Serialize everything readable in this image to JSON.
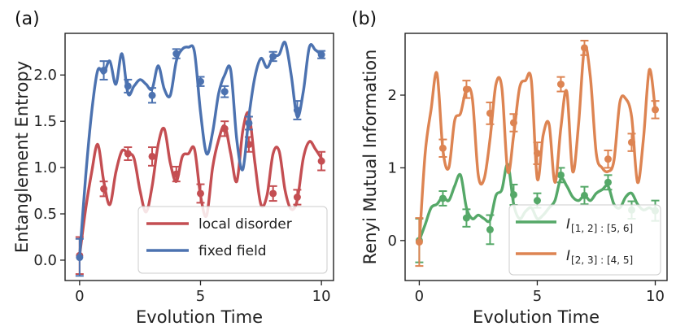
{
  "chart_data": [
    {
      "panel_label": "(a)",
      "type": "line",
      "xlabel": "Evolution Time",
      "ylabel": "Entanglement Entropy",
      "xlim": [
        -0.6,
        10.5
      ],
      "ylim": [
        -0.22,
        2.45
      ],
      "xticks": [
        0,
        5,
        10
      ],
      "xtick_labels": [
        "0",
        "5",
        "10"
      ],
      "yticks": [
        0.0,
        0.5,
        1.0,
        1.5,
        2.0
      ],
      "ytick_labels": [
        "0.0",
        "0.5",
        "1.0",
        "1.5",
        "2.0"
      ],
      "legend_position": "lower-right",
      "series": [
        {
          "name": "local disorder",
          "color": "#c44e52",
          "curve_x": [
            0,
            0.25,
            0.5,
            0.75,
            1,
            1.25,
            1.5,
            1.75,
            2,
            2.25,
            2.5,
            2.75,
            3,
            3.25,
            3.5,
            3.75,
            4,
            4.25,
            4.5,
            4.75,
            5,
            5.25,
            5.5,
            5.75,
            6,
            6.25,
            6.5,
            6.75,
            7,
            7.25,
            7.5,
            7.75,
            8,
            8.25,
            8.5,
            8.75,
            9,
            9.25,
            9.5,
            9.75,
            10
          ],
          "curve_y": [
            0.05,
            0.55,
            0.95,
            1.25,
            0.85,
            0.6,
            0.95,
            1.18,
            1.15,
            1.1,
            0.75,
            0.52,
            0.8,
            1.25,
            1.42,
            1.05,
            0.85,
            1.12,
            1.15,
            1.2,
            0.7,
            0.48,
            1.0,
            1.3,
            1.45,
            1.15,
            0.85,
            1.4,
            1.58,
            1.05,
            0.6,
            0.7,
            1.15,
            1.18,
            0.75,
            0.55,
            0.65,
            1.1,
            1.28,
            1.2,
            1.1
          ],
          "points": [
            {
              "x": 0,
              "y": 0.05,
              "err": 0.2
            },
            {
              "x": 1,
              "y": 0.77,
              "err": 0.08
            },
            {
              "x": 2,
              "y": 1.15,
              "err": 0.07
            },
            {
              "x": 3,
              "y": 1.12,
              "err": 0.1
            },
            {
              "x": 4,
              "y": 0.93,
              "err": 0.08
            },
            {
              "x": 5,
              "y": 0.72,
              "err": 0.1
            },
            {
              "x": 6,
              "y": 1.42,
              "err": 0.08
            },
            {
              "x": 7,
              "y": 1.25,
              "err": 0.08
            },
            {
              "x": 8,
              "y": 0.72,
              "err": 0.08
            },
            {
              "x": 9,
              "y": 0.68,
              "err": 0.08
            },
            {
              "x": 10,
              "y": 1.07,
              "err": 0.1
            }
          ]
        },
        {
          "name": "fixed field",
          "color": "#4c72b0",
          "curve_x": [
            0,
            0.25,
            0.5,
            0.75,
            1,
            1.25,
            1.5,
            1.75,
            2,
            2.25,
            2.5,
            2.75,
            3,
            3.25,
            3.5,
            3.75,
            4,
            4.25,
            4.5,
            4.75,
            5,
            5.25,
            5.5,
            5.75,
            6,
            6.25,
            6.5,
            6.75,
            7,
            7.25,
            7.5,
            7.75,
            8,
            8.25,
            8.5,
            8.75,
            9,
            9.25,
            9.5,
            9.75,
            10
          ],
          "curve_y": [
            0.03,
            0.9,
            1.6,
            2.05,
            2.02,
            2.15,
            1.9,
            2.23,
            1.8,
            1.88,
            1.95,
            1.9,
            1.85,
            2.1,
            1.85,
            1.78,
            2.15,
            2.28,
            2.3,
            2.25,
            1.6,
            1.15,
            1.38,
            1.8,
            2.0,
            2.05,
            1.3,
            0.98,
            1.55,
            1.98,
            2.18,
            2.08,
            2.2,
            2.22,
            2.35,
            2.0,
            1.55,
            1.82,
            2.3,
            2.27,
            2.22
          ],
          "points": [
            {
              "x": 0,
              "y": 0.03,
              "err": 0.2
            },
            {
              "x": 1,
              "y": 2.05,
              "err": 0.1
            },
            {
              "x": 2,
              "y": 1.88,
              "err": 0.07
            },
            {
              "x": 3,
              "y": 1.78,
              "err": 0.08
            },
            {
              "x": 4,
              "y": 2.23,
              "err": 0.05
            },
            {
              "x": 5,
              "y": 1.93,
              "err": 0.05
            },
            {
              "x": 6,
              "y": 1.82,
              "err": 0.06
            },
            {
              "x": 7,
              "y": 1.48,
              "err": 0.07
            },
            {
              "x": 8,
              "y": 2.2,
              "err": 0.05
            },
            {
              "x": 9,
              "y": 1.62,
              "err": 0.1
            },
            {
              "x": 10,
              "y": 2.22,
              "err": 0.04
            }
          ]
        }
      ]
    },
    {
      "panel_label": "(b)",
      "type": "line",
      "xlabel": "Evolution Time",
      "ylabel": "Renyi Mutual Information",
      "xlim": [
        -0.6,
        10.5
      ],
      "ylim": [
        -0.55,
        2.85
      ],
      "xticks": [
        0,
        5,
        10
      ],
      "xtick_labels": [
        "0",
        "5",
        "10"
      ],
      "yticks": [
        0,
        1,
        2
      ],
      "ytick_labels": [
        "0",
        "1",
        "2"
      ],
      "legend_position": "lower-right",
      "series": [
        {
          "name_main": "I",
          "name_sub": "[1, 2] : [5, 6]",
          "color": "#55a868",
          "curve_x": [
            0,
            0.25,
            0.5,
            0.75,
            1,
            1.25,
            1.5,
            1.75,
            2,
            2.25,
            2.5,
            2.75,
            3,
            3.25,
            3.5,
            3.75,
            4,
            4.25,
            4.5,
            4.75,
            5,
            5.25,
            5.5,
            5.75,
            6,
            6.25,
            6.5,
            6.75,
            7,
            7.25,
            7.5,
            7.75,
            8,
            8.25,
            8.5,
            8.75,
            9,
            9.25,
            9.5,
            9.75,
            10
          ],
          "curve_y": [
            0.0,
            0.22,
            0.45,
            0.5,
            0.6,
            0.55,
            0.75,
            0.9,
            0.45,
            0.3,
            0.35,
            0.3,
            0.28,
            0.62,
            0.7,
            1.05,
            0.5,
            0.3,
            0.4,
            0.45,
            0.3,
            0.35,
            0.45,
            0.55,
            0.85,
            0.75,
            0.6,
            0.55,
            0.62,
            0.55,
            0.65,
            0.7,
            0.75,
            0.5,
            0.45,
            0.6,
            0.65,
            0.5,
            0.42,
            0.45,
            0.4
          ],
          "points": [
            {
              "x": 0,
              "y": 0.0,
              "err": 0.3
            },
            {
              "x": 1,
              "y": 0.58,
              "err": 0.1
            },
            {
              "x": 2,
              "y": 0.31,
              "err": 0.12
            },
            {
              "x": 3,
              "y": 0.15,
              "err": 0.2
            },
            {
              "x": 4,
              "y": 0.63,
              "err": 0.14
            },
            {
              "x": 5,
              "y": 0.55,
              "err": 0.1
            },
            {
              "x": 6,
              "y": 0.9,
              "err": 0.1
            },
            {
              "x": 7,
              "y": 0.62,
              "err": 0.12
            },
            {
              "x": 8,
              "y": 0.8,
              "err": 0.1
            },
            {
              "x": 9,
              "y": 0.42,
              "err": 0.12
            },
            {
              "x": 10,
              "y": 0.41,
              "err": 0.14
            }
          ]
        },
        {
          "name_main": "I",
          "name_sub": "[2, 3] : [4, 5]",
          "color": "#dd8452",
          "curve_x": [
            0,
            0.25,
            0.5,
            0.75,
            1,
            1.25,
            1.5,
            1.75,
            2,
            2.25,
            2.5,
            2.75,
            3,
            3.25,
            3.5,
            3.75,
            4,
            4.25,
            4.5,
            4.75,
            5,
            5.25,
            5.5,
            5.75,
            6,
            6.25,
            6.5,
            6.75,
            7,
            7.25,
            7.5,
            7.75,
            8,
            8.25,
            8.5,
            8.75,
            9,
            9.25,
            9.5,
            9.75,
            10
          ],
          "curve_y": [
            -0.05,
            1.2,
            1.8,
            2.3,
            1.25,
            1.0,
            1.65,
            1.75,
            2.08,
            1.95,
            0.9,
            0.85,
            1.4,
            2.15,
            2.1,
            0.95,
            1.45,
            2.1,
            2.2,
            2.2,
            0.85,
            1.45,
            1.6,
            0.8,
            1.55,
            2.05,
            0.95,
            1.6,
            2.65,
            2.25,
            1.2,
            1.0,
            0.95,
            1.1,
            1.9,
            1.95,
            1.7,
            0.8,
            1.4,
            2.35,
            1.8
          ],
          "points": [
            {
              "x": 0,
              "y": -0.02,
              "err": 0.33
            },
            {
              "x": 1,
              "y": 1.27,
              "err": 0.12
            },
            {
              "x": 2,
              "y": 2.08,
              "err": 0.12
            },
            {
              "x": 3,
              "y": 1.75,
              "err": 0.15
            },
            {
              "x": 4,
              "y": 1.62,
              "err": 0.12
            },
            {
              "x": 5,
              "y": 1.2,
              "err": 0.15
            },
            {
              "x": 6,
              "y": 2.15,
              "err": 0.1
            },
            {
              "x": 7,
              "y": 2.65,
              "err": 0.1
            },
            {
              "x": 8,
              "y": 1.12,
              "err": 0.12
            },
            {
              "x": 9,
              "y": 1.35,
              "err": 0.12
            },
            {
              "x": 10,
              "y": 1.8,
              "err": 0.12
            }
          ]
        }
      ]
    }
  ]
}
